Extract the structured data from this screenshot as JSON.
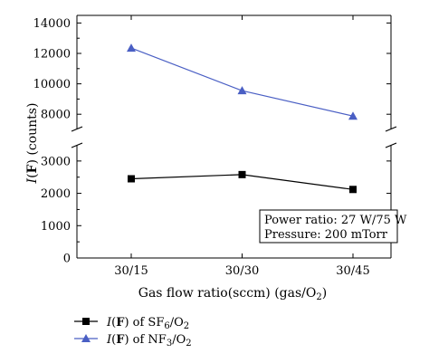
{
  "chart_data": {
    "type": "line",
    "categories": [
      "30/15",
      "30/30",
      "30/45"
    ],
    "xlabel": "Gas flow ratio(sccm) (gas/O₂)",
    "ylabel": "I(F) (counts)",
    "axis_break": {
      "lower": [
        0,
        3500
      ],
      "upper": [
        7000,
        14500
      ]
    },
    "y_ticks_lower": [
      "0",
      "1000",
      "2000",
      "3000"
    ],
    "y_ticks_upper": [
      "8000",
      "10000",
      "12000",
      "14000"
    ],
    "series": [
      {
        "name": "I(F) of SF₆/O₂",
        "values": [
          2450,
          2580,
          2120
        ],
        "color": "#000000",
        "marker": "square"
      },
      {
        "name": "I(F) of NF₃/O₂",
        "values": [
          12350,
          9550,
          7880
        ],
        "color": "#4a5fc4",
        "marker": "triangle"
      }
    ],
    "annotation": [
      "Power ratio: 27 W/75 W",
      "Pressure: 200 mTorr"
    ],
    "legend_position": "bottom-left"
  }
}
